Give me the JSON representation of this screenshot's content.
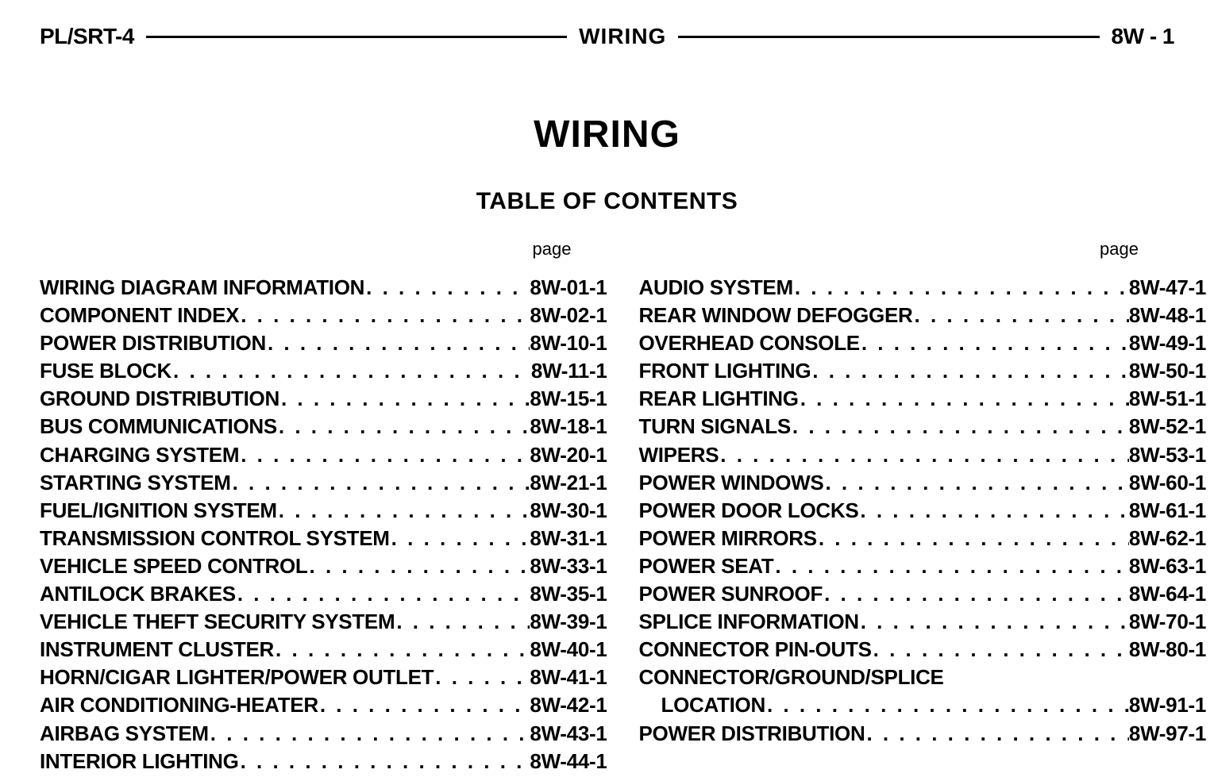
{
  "header": {
    "left": "PL/SRT-4",
    "center": "WIRING",
    "right": "8W - 1"
  },
  "title": "WIRING",
  "subtitle": "TABLE OF CONTENTS",
  "page_label": "page",
  "toc": {
    "left": [
      {
        "label": "WIRING DIAGRAM INFORMATION",
        "page": "8W-01-1"
      },
      {
        "label": "COMPONENT INDEX",
        "page": "8W-02-1"
      },
      {
        "label": "POWER DISTRIBUTION",
        "page": "8W-10-1"
      },
      {
        "label": "FUSE BLOCK",
        "page": "8W-11-1"
      },
      {
        "label": "GROUND DISTRIBUTION",
        "page": "8W-15-1"
      },
      {
        "label": "BUS COMMUNICATIONS",
        "page": "8W-18-1"
      },
      {
        "label": "CHARGING SYSTEM",
        "page": "8W-20-1"
      },
      {
        "label": "STARTING SYSTEM",
        "page": "8W-21-1"
      },
      {
        "label": "FUEL/IGNITION SYSTEM",
        "page": "8W-30-1"
      },
      {
        "label": "TRANSMISSION CONTROL SYSTEM",
        "page": "8W-31-1"
      },
      {
        "label": "VEHICLE SPEED CONTROL",
        "page": "8W-33-1"
      },
      {
        "label": "ANTILOCK BRAKES",
        "page": "8W-35-1"
      },
      {
        "label": "VEHICLE THEFT SECURITY SYSTEM",
        "page": "8W-39-1"
      },
      {
        "label": "INSTRUMENT CLUSTER",
        "page": "8W-40-1"
      },
      {
        "label": "HORN/CIGAR LIGHTER/POWER OUTLET",
        "page": "8W-41-1"
      },
      {
        "label": "AIR CONDITIONING-HEATER",
        "page": "8W-42-1"
      },
      {
        "label": "AIRBAG SYSTEM",
        "page": "8W-43-1"
      },
      {
        "label": "INTERIOR LIGHTING",
        "page": "8W-44-1"
      }
    ],
    "right": [
      {
        "label": "AUDIO SYSTEM",
        "page": "8W-47-1"
      },
      {
        "label": "REAR WINDOW DEFOGGER",
        "page": "8W-48-1"
      },
      {
        "label": "OVERHEAD CONSOLE",
        "page": "8W-49-1"
      },
      {
        "label": "FRONT LIGHTING",
        "page": "8W-50-1"
      },
      {
        "label": "REAR LIGHTING",
        "page": "8W-51-1"
      },
      {
        "label": "TURN SIGNALS",
        "page": "8W-52-1"
      },
      {
        "label": "WIPERS",
        "page": "8W-53-1"
      },
      {
        "label": "POWER WINDOWS",
        "page": "8W-60-1"
      },
      {
        "label": "POWER DOOR LOCKS",
        "page": "8W-61-1"
      },
      {
        "label": "POWER MIRRORS",
        "page": "8W-62-1"
      },
      {
        "label": "POWER SEAT",
        "page": "8W-63-1"
      },
      {
        "label": "POWER SUNROOF",
        "page": "8W-64-1"
      },
      {
        "label": "SPLICE INFORMATION",
        "page": "8W-70-1"
      },
      {
        "label": "CONNECTOR PIN-OUTS",
        "page": "8W-80-1"
      },
      {
        "label": "CONNECTOR/GROUND/SPLICE",
        "page": "",
        "nodots": true
      },
      {
        "label": "LOCATION",
        "page": "8W-91-1",
        "indent": true
      },
      {
        "label": "POWER DISTRIBUTION",
        "page": "8W-97-1"
      }
    ]
  }
}
